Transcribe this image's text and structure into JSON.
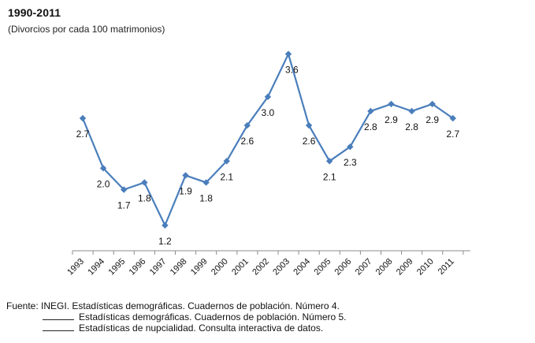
{
  "header": {
    "title": "1990-2011",
    "subtitle": "(Divorcios por cada 100 matrimonios)"
  },
  "chart_data": {
    "type": "line",
    "title": "1990-2011",
    "subtitle": "(Divorcios por cada 100 matrimonios)",
    "xlabel": "",
    "ylabel": "",
    "categories": [
      "1993",
      "1994",
      "1995",
      "1996",
      "1997",
      "1998",
      "1999",
      "2000",
      "2001",
      "2002",
      "2003",
      "2004",
      "2005",
      "2006",
      "2007",
      "2008",
      "2009",
      "2010",
      "2011"
    ],
    "series": [
      {
        "values": [
          2.7,
          2.0,
          1.7,
          1.8,
          1.2,
          1.9,
          1.8,
          2.1,
          2.6,
          3.0,
          3.6,
          2.6,
          2.1,
          2.3,
          2.8,
          2.9,
          2.8,
          2.9,
          2.7
        ],
        "labels": [
          "2.7",
          "2.0",
          "1.7",
          "1.8",
          "1.2",
          "1.9",
          "1.8",
          "2.1",
          "2.6",
          "3.0",
          "3.6",
          "2.6",
          "2.1",
          "2.3",
          "2.8",
          "2.9",
          "2.8",
          "2.9",
          "2.7"
        ],
        "color": "#4a7ebb"
      }
    ],
    "grid": false,
    "legend": "none"
  },
  "footer": {
    "source_prefix": "Fuente: INEGI.",
    "source_1": "Estadísticas demográficas. Cuadernos de población. Número 4.",
    "source_2": "Estadísticas demográficas. Cuadernos de población. Número 5.",
    "source_3": "Estadísticas de nupcialidad. Consulta interactiva de datos."
  }
}
